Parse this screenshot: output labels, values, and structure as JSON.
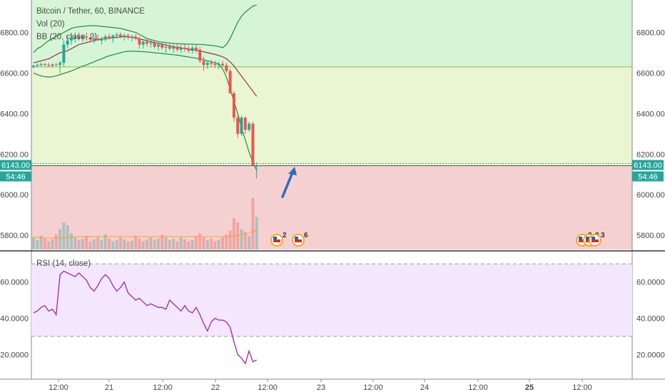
{
  "chart_data": [
    {
      "type": "candlestick",
      "title": "Bitcoin / Tether, 60, BINANCE",
      "indicators": [
        "Vol (20)",
        "BB (20, close, 2)"
      ],
      "ylim": [
        5730,
        6960
      ],
      "y_ticks": [
        "5800.00",
        "6000.00",
        "6200.00",
        "6400.00",
        "6600.00",
        "6800.00"
      ],
      "y_tick_values": [
        5800,
        6000,
        6200,
        6400,
        6600,
        6800
      ],
      "last_price": "6143.00",
      "countdown": "54:46",
      "zones": [
        {
          "from": 6630,
          "to": 6960,
          "color": "#d6f5d6"
        },
        {
          "from": 6143,
          "to": 6630,
          "color": "#eaf5d2"
        },
        {
          "from": 5730,
          "to": 6143,
          "color": "#f5d0d0"
        }
      ],
      "level_line": 6630,
      "candles": [
        [
          6630,
          6640,
          6622,
          6636
        ],
        [
          6636,
          6648,
          6628,
          6640
        ],
        [
          6640,
          6652,
          6632,
          6644
        ],
        [
          6644,
          6650,
          6634,
          6640
        ],
        [
          6640,
          6650,
          6630,
          6636
        ],
        [
          6636,
          6648,
          6630,
          6642
        ],
        [
          6642,
          6650,
          6635,
          6640
        ],
        [
          6640,
          6660,
          6600,
          6650
        ],
        [
          6650,
          6760,
          6630,
          6740
        ],
        [
          6740,
          6780,
          6720,
          6760
        ],
        [
          6760,
          6790,
          6740,
          6770
        ],
        [
          6770,
          6800,
          6750,
          6780
        ],
        [
          6780,
          6800,
          6760,
          6770
        ],
        [
          6770,
          6790,
          6755,
          6780
        ],
        [
          6780,
          6800,
          6760,
          6775
        ],
        [
          6775,
          6790,
          6750,
          6765
        ],
        [
          6765,
          6785,
          6745,
          6770
        ],
        [
          6770,
          6790,
          6760,
          6760
        ],
        [
          6760,
          6780,
          6740,
          6765
        ],
        [
          6765,
          6790,
          6755,
          6780
        ],
        [
          6780,
          6795,
          6765,
          6770
        ],
        [
          6770,
          6790,
          6750,
          6785
        ],
        [
          6785,
          6800,
          6770,
          6790
        ],
        [
          6790,
          6800,
          6770,
          6780
        ],
        [
          6780,
          6795,
          6760,
          6785
        ],
        [
          6785,
          6795,
          6765,
          6775
        ],
        [
          6775,
          6790,
          6755,
          6780
        ],
        [
          6780,
          6792,
          6760,
          6770
        ],
        [
          6770,
          6780,
          6720,
          6740
        ],
        [
          6740,
          6760,
          6720,
          6755
        ],
        [
          6755,
          6770,
          6730,
          6745
        ],
        [
          6745,
          6765,
          6725,
          6750
        ],
        [
          6750,
          6760,
          6720,
          6730
        ],
        [
          6730,
          6750,
          6710,
          6740
        ],
        [
          6740,
          6755,
          6715,
          6725
        ],
        [
          6725,
          6745,
          6700,
          6730
        ],
        [
          6730,
          6750,
          6710,
          6720
        ],
        [
          6720,
          6740,
          6700,
          6730
        ],
        [
          6730,
          6745,
          6705,
          6715
        ],
        [
          6715,
          6740,
          6700,
          6725
        ],
        [
          6725,
          6745,
          6705,
          6720
        ],
        [
          6720,
          6735,
          6700,
          6710
        ],
        [
          6710,
          6735,
          6695,
          6725
        ],
        [
          6725,
          6740,
          6700,
          6715
        ],
        [
          6715,
          6730,
          6650,
          6660
        ],
        [
          6660,
          6680,
          6610,
          6640
        ],
        [
          6640,
          6660,
          6620,
          6650
        ],
        [
          6650,
          6665,
          6630,
          6645
        ],
        [
          6645,
          6660,
          6625,
          6640
        ],
        [
          6640,
          6655,
          6620,
          6645
        ],
        [
          6645,
          6660,
          6630,
          6638
        ],
        [
          6638,
          6650,
          6600,
          6610
        ],
        [
          6610,
          6620,
          6500,
          6500
        ],
        [
          6500,
          6510,
          6360,
          6380
        ],
        [
          6380,
          6390,
          6280,
          6300
        ],
        [
          6300,
          6390,
          6290,
          6380
        ],
        [
          6380,
          6385,
          6300,
          6320
        ],
        [
          6320,
          6360,
          6310,
          6350
        ],
        [
          6350,
          6360,
          6150,
          6143
        ],
        [
          6143,
          6160,
          6080,
          6143
        ]
      ],
      "bb_upper": [
        6700,
        6720,
        6730,
        6745,
        6760,
        6770,
        6780,
        6790,
        6800,
        6810,
        6820,
        6825,
        6828,
        6830,
        6832,
        6833,
        6833,
        6832,
        6830,
        6828,
        6826,
        6824,
        6822,
        6820,
        6815,
        6810,
        6805,
        6800,
        6790,
        6780,
        6770,
        6765,
        6760,
        6755,
        6752,
        6750,
        6748,
        6746,
        6745,
        6744,
        6743,
        6742,
        6742,
        6741,
        6741,
        6740,
        6738,
        6736,
        6734,
        6730,
        6725,
        6740,
        6770,
        6810,
        6850,
        6880,
        6900,
        6915,
        6930,
        6935
      ],
      "bb_middle": [
        6650,
        6655,
        6660,
        6665,
        6670,
        6680,
        6690,
        6700,
        6705,
        6710,
        6720,
        6730,
        6740,
        6745,
        6750,
        6755,
        6760,
        6765,
        6768,
        6770,
        6772,
        6774,
        6776,
        6778,
        6780,
        6778,
        6776,
        6772,
        6768,
        6764,
        6760,
        6755,
        6750,
        6746,
        6742,
        6738,
        6734,
        6730,
        6727,
        6724,
        6721,
        6718,
        6715,
        6712,
        6709,
        6705,
        6700,
        6696,
        6692,
        6686,
        6680,
        6670,
        6655,
        6635,
        6610,
        6585,
        6560,
        6535,
        6510,
        6485
      ],
      "bb_lower": [
        6600,
        6592,
        6586,
        6582,
        6580,
        6582,
        6586,
        6592,
        6598,
        6604,
        6610,
        6618,
        6626,
        6634,
        6640,
        6648,
        6655,
        6663,
        6670,
        6678,
        6685,
        6690,
        6695,
        6700,
        6705,
        6707,
        6708,
        6707,
        6706,
        6705,
        6704,
        6702,
        6700,
        6698,
        6696,
        6694,
        6692,
        6690,
        6688,
        6685,
        6682,
        6679,
        6676,
        6673,
        6670,
        6665,
        6660,
        6655,
        6650,
        6645,
        6620,
        6580,
        6520,
        6460,
        6400,
        6330,
        6270,
        6210,
        6160,
        6120
      ],
      "volume": [
        18,
        14,
        20,
        16,
        12,
        15,
        22,
        30,
        40,
        36,
        24,
        18,
        14,
        16,
        20,
        12,
        15,
        18,
        14,
        22,
        16,
        12,
        14,
        18,
        15,
        12,
        13,
        20,
        16,
        12,
        15,
        18,
        14,
        16,
        22,
        18,
        14,
        16,
        12,
        18,
        15,
        12,
        14,
        20,
        24,
        18,
        14,
        16,
        12,
        14,
        18,
        22,
        28,
        46,
        40,
        30,
        26,
        20,
        76,
        48
      ],
      "volume_ma": [
        18,
        18,
        18,
        17,
        17,
        17,
        17,
        17,
        17,
        18,
        18,
        19,
        19,
        19,
        19,
        19,
        19,
        19,
        19,
        19,
        19,
        19,
        19,
        19,
        19,
        19,
        19,
        19,
        19,
        19,
        19,
        19,
        19,
        19,
        19,
        19,
        19,
        19,
        19,
        19,
        19,
        19,
        19,
        19,
        19,
        19,
        19,
        19,
        19,
        19,
        19,
        19,
        19,
        20,
        21,
        22,
        23,
        24,
        26,
        28
      ],
      "events": [
        {
          "label": "2"
        },
        {
          "label": "6"
        },
        {
          "label": "3"
        },
        {
          "label": "3"
        },
        {
          "label": "3"
        }
      ],
      "x_ticks": [
        "12:00",
        "21",
        "12:00",
        "22",
        "12:00",
        "23",
        "12:00",
        "24",
        "12:00",
        "25",
        "12:00"
      ],
      "annotation": "up-arrow"
    },
    {
      "type": "line",
      "title": "RSI (14, close)",
      "ylim": [
        8,
        76
      ],
      "y_ticks": [
        "20.0000",
        "40.0000",
        "60.0000"
      ],
      "y_tick_values": [
        20,
        40,
        60
      ],
      "bands": [
        30,
        70
      ],
      "band_fill": "#f3e6fd",
      "line_color": "#9c27b0",
      "values": [
        43,
        44,
        46,
        47,
        44,
        45,
        42,
        64,
        66,
        65,
        64,
        63,
        65,
        63,
        61,
        57,
        55,
        58,
        62,
        64,
        62,
        58,
        55,
        57,
        60,
        54,
        52,
        50,
        51,
        49,
        47,
        48,
        47,
        46,
        46,
        45,
        50,
        48,
        46,
        44,
        47,
        44,
        43,
        46,
        42,
        37,
        33,
        38,
        40,
        39,
        39,
        38,
        35,
        27,
        20,
        18,
        15,
        22,
        16,
        17
      ],
      "last_label": "",
      "x_ticks": []
    }
  ]
}
